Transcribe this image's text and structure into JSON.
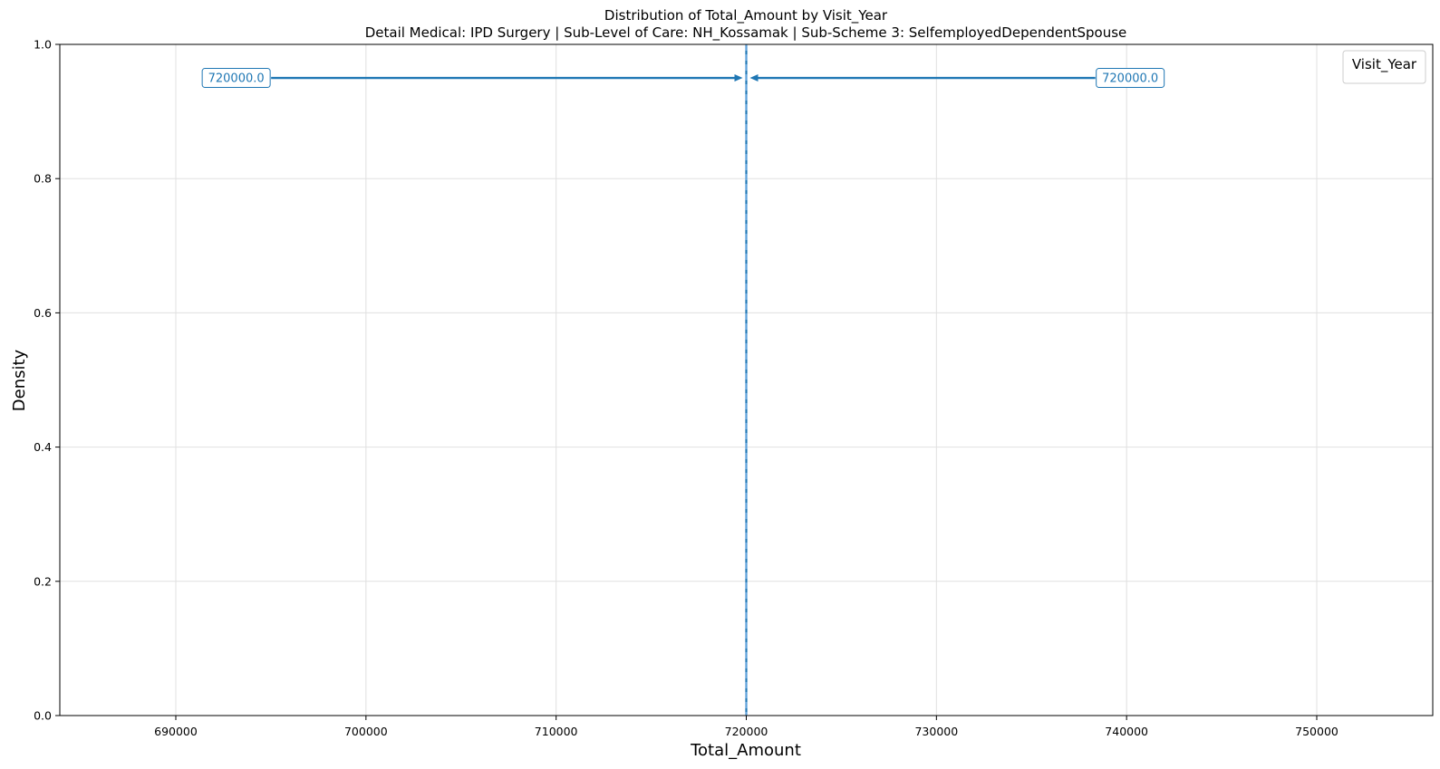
{
  "chart_data": {
    "type": "line",
    "title": "Distribution of Total_Amount by Visit_Year",
    "subtitle": "Detail Medical: IPD Surgery | Sub-Level of Care: NH_Kossamak | Sub-Scheme 3: SelfemployedDependentSpouse",
    "xlabel": "Total_Amount",
    "ylabel": "Density",
    "xlim": [
      683900,
      756100
    ],
    "ylim": [
      0,
      1.0
    ],
    "x_ticks": [
      690000,
      700000,
      710000,
      720000,
      730000,
      740000,
      750000
    ],
    "x_tick_labels": [
      "690000",
      "700000",
      "710000",
      "720000",
      "730000",
      "740000",
      "750000"
    ],
    "y_ticks": [
      0.0,
      0.2,
      0.4,
      0.6,
      0.8,
      1.0
    ],
    "y_tick_labels": [
      "0.0",
      "0.2",
      "0.4",
      "0.6",
      "0.8",
      "1.0"
    ],
    "grid": true,
    "legend": {
      "title": "Visit_Year",
      "placement": "top-right",
      "entries": []
    },
    "vertical_lines": [
      {
        "x": 720000,
        "style": "solid",
        "color": "#1f77b4"
      },
      {
        "x": 720000,
        "style": "dashed",
        "color": "#5fa2dd"
      }
    ],
    "annotations": [
      {
        "text": "720000.0",
        "text_x": 693700,
        "y": 0.95,
        "arrow_to_x": 720000
      },
      {
        "text": "720000.0",
        "text_x": 740000,
        "y": 0.95,
        "arrow_to_x": 720000
      }
    ],
    "colors": {
      "primary": "#1f77b4",
      "dashed": "#5fa2dd",
      "grid": "#e0e0e0"
    }
  }
}
